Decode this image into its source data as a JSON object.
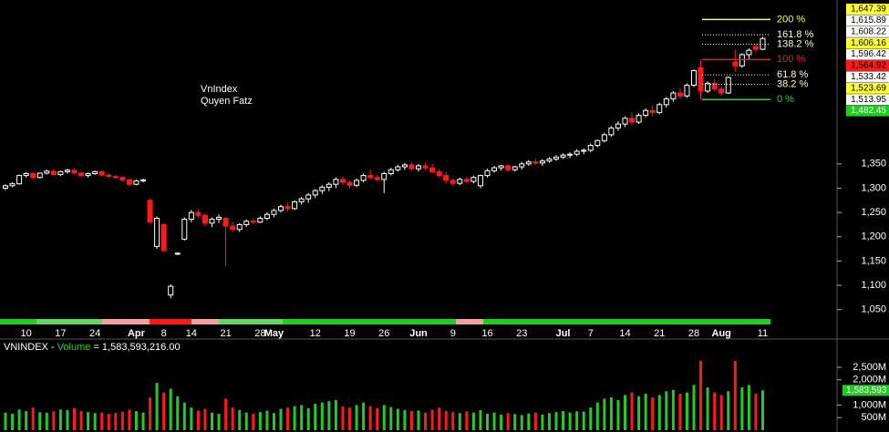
{
  "chart_data": [
    {
      "type": "candlestick",
      "annotations": [
        "VnIndex",
        "Quyen Fatz"
      ],
      "up_color": "#ffffff",
      "down_color": "#ff1a1a",
      "categories": [
        null,
        null,
        null,
        "10",
        null,
        null,
        null,
        null,
        "17",
        null,
        null,
        null,
        null,
        "24",
        null,
        null,
        null,
        null,
        null,
        "Apr",
        null,
        null,
        null,
        "8",
        null,
        null,
        null,
        "14",
        null,
        null,
        null,
        null,
        "21",
        null,
        null,
        null,
        null,
        "28",
        null,
        "May",
        null,
        null,
        null,
        null,
        null,
        "12",
        null,
        null,
        null,
        null,
        "19",
        null,
        null,
        null,
        null,
        "26",
        null,
        null,
        null,
        null,
        "Jun",
        null,
        null,
        null,
        null,
        "9",
        null,
        null,
        null,
        null,
        "16",
        null,
        null,
        null,
        null,
        "23",
        null,
        null,
        null,
        null,
        null,
        "Jul",
        null,
        null,
        null,
        "7",
        null,
        null,
        null,
        null,
        "14",
        null,
        null,
        null,
        null,
        "21",
        null,
        null,
        null,
        null,
        "28",
        null,
        null,
        null,
        "Aug",
        null,
        null,
        null,
        null,
        null,
        "11"
      ],
      "open": [
        1300,
        1305,
        1309,
        1326,
        1330,
        1322,
        1331,
        1335,
        1328,
        1334,
        1337,
        1331,
        1326,
        1330,
        1334,
        1327,
        1324,
        1322,
        1317,
        1308,
        1315,
        1275,
        1180,
        1225,
        1080,
        1165,
        1195,
        1236,
        1250,
        1244,
        1228,
        1236,
        1238,
        1222,
        1215,
        1225,
        1232,
        1230,
        1238,
        1246,
        1254,
        1262,
        1258,
        1272,
        1278,
        1286,
        1295,
        1302,
        1308,
        1318,
        1312,
        1306,
        1316,
        1326,
        1322,
        1318,
        1330,
        1338,
        1344,
        1348,
        1340,
        1346,
        1342,
        1334,
        1326,
        1316,
        1310,
        1318,
        1314,
        1305,
        1326,
        1336,
        1342,
        1346,
        1338,
        1344,
        1350,
        1354,
        1352,
        1356,
        1360,
        1364,
        1368,
        1370,
        1376,
        1378,
        1388,
        1398,
        1410,
        1424,
        1432,
        1444,
        1436,
        1450,
        1460,
        1456,
        1472,
        1484,
        1496,
        1490,
        1512,
        1548,
        1500,
        1516,
        1504,
        1496,
        1560,
        1552,
        1575,
        1592,
        1586
      ],
      "high": [
        1308,
        1312,
        1328,
        1333,
        1332,
        1332,
        1338,
        1340,
        1336,
        1340,
        1341,
        1334,
        1332,
        1336,
        1336,
        1331,
        1328,
        1325,
        1320,
        1318,
        1320,
        1278,
        1242,
        1228,
        1102,
        1168,
        1240,
        1255,
        1258,
        1248,
        1240,
        1246,
        1240,
        1232,
        1228,
        1236,
        1238,
        1242,
        1250,
        1258,
        1266,
        1270,
        1275,
        1282,
        1290,
        1298,
        1306,
        1312,
        1322,
        1324,
        1316,
        1320,
        1330,
        1338,
        1328,
        1334,
        1342,
        1348,
        1352,
        1354,
        1350,
        1352,
        1350,
        1340,
        1334,
        1320,
        1322,
        1324,
        1326,
        1328,
        1340,
        1346,
        1348,
        1350,
        1346,
        1354,
        1358,
        1360,
        1360,
        1364,
        1368,
        1372,
        1374,
        1380,
        1382,
        1392,
        1400,
        1414,
        1428,
        1438,
        1448,
        1456,
        1454,
        1464,
        1470,
        1476,
        1488,
        1500,
        1506,
        1516,
        1545,
        1564.92,
        1520,
        1525,
        1510,
        1530,
        1585,
        1578,
        1588,
        1598,
        1612
      ],
      "low": [
        1296,
        1302,
        1307,
        1322,
        1318,
        1320,
        1328,
        1326,
        1325,
        1330,
        1329,
        1324,
        1322,
        1327,
        1325,
        1322,
        1320,
        1313,
        1305,
        1306,
        1312,
        1228,
        1175,
        1168,
        1073,
        1162,
        1192,
        1230,
        1238,
        1222,
        1220,
        1228,
        1140,
        1210,
        1210,
        1220,
        1226,
        1228,
        1234,
        1240,
        1250,
        1252,
        1255,
        1266,
        1270,
        1280,
        1288,
        1294,
        1300,
        1306,
        1300,
        1302,
        1312,
        1318,
        1314,
        1290,
        1326,
        1334,
        1338,
        1336,
        1334,
        1338,
        1330,
        1322,
        1310,
        1304,
        1306,
        1310,
        1310,
        1300,
        1322,
        1332,
        1336,
        1334,
        1334,
        1338,
        1346,
        1348,
        1346,
        1352,
        1356,
        1360,
        1362,
        1366,
        1370,
        1374,
        1384,
        1394,
        1406,
        1418,
        1426,
        1430,
        1432,
        1446,
        1448,
        1452,
        1466,
        1478,
        1484,
        1486,
        1508,
        1482.45,
        1496,
        1500,
        1490,
        1494,
        1540,
        1548,
        1566,
        1580,
        1584
      ],
      "close": [
        1305,
        1309,
        1326,
        1330,
        1322,
        1331,
        1335,
        1328,
        1334,
        1337,
        1331,
        1326,
        1330,
        1334,
        1327,
        1324,
        1322,
        1317,
        1308,
        1315,
        1317,
        1230,
        1238,
        1172,
        1098,
        1166,
        1236,
        1250,
        1244,
        1228,
        1236,
        1240,
        1222,
        1215,
        1225,
        1232,
        1230,
        1238,
        1246,
        1254,
        1262,
        1258,
        1272,
        1278,
        1286,
        1295,
        1302,
        1308,
        1318,
        1312,
        1306,
        1316,
        1326,
        1322,
        1318,
        1330,
        1338,
        1344,
        1348,
        1340,
        1346,
        1342,
        1334,
        1326,
        1316,
        1310,
        1318,
        1314,
        1322,
        1326,
        1336,
        1342,
        1346,
        1338,
        1344,
        1350,
        1354,
        1352,
        1356,
        1360,
        1364,
        1368,
        1370,
        1376,
        1378,
        1388,
        1398,
        1410,
        1424,
        1432,
        1444,
        1436,
        1450,
        1460,
        1456,
        1472,
        1484,
        1496,
        1490,
        1512,
        1542,
        1500,
        1516,
        1504,
        1496,
        1528,
        1552,
        1575,
        1584,
        1586,
        1608.22
      ],
      "ylim": [
        1040,
        1680
      ],
      "yticks": [
        {
          "value": 1050,
          "label": "1,050"
        },
        {
          "value": 1100,
          "label": "1,100"
        },
        {
          "value": 1150,
          "label": "1,150"
        },
        {
          "value": 1200,
          "label": "1,200"
        },
        {
          "value": 1250,
          "label": "1,250"
        },
        {
          "value": 1300,
          "label": "1,300"
        },
        {
          "value": 1350,
          "label": "1,350"
        }
      ],
      "fibonacci": [
        {
          "label": "200 %",
          "value": 1647.39,
          "color": "#ffff33",
          "dotted": false
        },
        {
          "label": "161.8 %",
          "value": 1615.89,
          "color": "#ffffcc",
          "dotted": true
        },
        {
          "label": "138.2 %",
          "value": 1596.42,
          "color": "#ffffcc",
          "dotted": true
        },
        {
          "label": "100 %",
          "value": 1564.92,
          "color": "#ff1a1a",
          "dotted": false
        },
        {
          "label": "61.8 %",
          "value": 1533.42,
          "color": "#ffffcc",
          "dotted": true
        },
        {
          "label": "38.2 %",
          "value": 1513.95,
          "color": "#ffffcc",
          "dotted": true
        },
        {
          "label": "0 %",
          "value": 1482.45,
          "color": "#22dd22",
          "dotted": false
        }
      ],
      "price_labels": [
        {
          "label": "1,647.39",
          "bg": "#ffff33",
          "fg": "#000000"
        },
        {
          "label": "1,615.89",
          "bg": "#ffffff",
          "fg": "#000000"
        },
        {
          "label": "1,608.22",
          "bg": "#ffffff",
          "fg": "#000000"
        },
        {
          "label": "1,606.16",
          "bg": "#ffff33",
          "fg": "#000000"
        },
        {
          "label": "1,596.42",
          "bg": "#ffffff",
          "fg": "#000000"
        },
        {
          "label": "1,564.92",
          "bg": "#ff1a1a",
          "fg": "#000000"
        },
        {
          "label": "1,533.42",
          "bg": "#ffffff",
          "fg": "#000000"
        },
        {
          "label": "1,523.69",
          "bg": "#ffff33",
          "fg": "#000000"
        },
        {
          "label": "1,513.95",
          "bg": "#ffffff",
          "fg": "#000000"
        },
        {
          "label": "1,482.45",
          "bg": "#22cc22",
          "fg": "#ffffff"
        }
      ]
    },
    {
      "type": "bar",
      "symbol": "VNINDEX -",
      "indicator": "Volume",
      "value_text": "= 1,583,593,216.00",
      "up_color": "#22cc22",
      "down_color": "#ff1a1a",
      "values": [
        700,
        650,
        820,
        760,
        900,
        710,
        690,
        750,
        820,
        800,
        870,
        760,
        720,
        680,
        700,
        650,
        690,
        740,
        820,
        760,
        700,
        1300,
        1880,
        1500,
        1650,
        1350,
        1100,
        900,
        780,
        850,
        700,
        650,
        1250,
        900,
        800,
        700,
        650,
        720,
        780,
        680,
        850,
        900,
        950,
        1000,
        880,
        1050,
        1100,
        1150,
        1200,
        950,
        900,
        1000,
        1100,
        950,
        880,
        1000,
        920,
        850,
        800,
        760,
        780,
        700,
        820,
        900,
        760,
        720,
        680,
        750,
        700,
        800,
        650,
        700,
        620,
        680,
        640,
        600,
        660,
        700,
        620,
        680,
        720,
        760,
        700,
        750,
        740,
        900,
        1100,
        1250,
        1300,
        1200,
        1400,
        1500,
        1350,
        1450,
        1300,
        1400,
        1550,
        1600,
        1450,
        1500,
        1800,
        2750,
        1700,
        1500,
        1400,
        1550,
        2750,
        1700,
        1800,
        1450,
        1583.593216
      ],
      "value_labels": [
        null,
        null,
        null,
        null,
        null,
        null,
        null,
        null,
        null,
        null,
        null,
        null,
        null,
        null,
        null,
        null,
        null,
        null,
        null,
        null,
        null,
        null,
        null,
        null,
        null,
        null,
        null,
        null,
        null,
        null,
        null,
        null,
        null,
        null,
        null,
        null,
        null,
        null,
        null,
        null,
        null,
        null,
        null,
        null,
        null,
        null,
        null,
        null,
        null,
        null,
        null,
        null,
        null,
        null,
        null,
        null,
        null,
        null,
        null,
        null,
        null,
        null,
        null,
        null,
        null,
        null,
        null,
        null,
        null,
        null,
        null,
        null,
        null,
        null,
        null,
        null,
        null,
        null,
        null,
        null,
        null,
        null,
        null,
        null,
        null,
        null,
        null,
        null,
        null,
        null,
        null,
        null,
        null,
        null,
        null,
        null,
        null,
        null,
        null,
        null,
        null,
        null,
        null,
        null,
        null,
        null,
        null,
        null,
        null,
        null,
        "1,583,593"
      ],
      "ylim": [
        0,
        2900
      ],
      "yticks": [
        {
          "value": 500,
          "label": "500M"
        },
        {
          "value": 1000,
          "label": "1,000M"
        },
        {
          "value": 2000,
          "label": "2,000M"
        },
        {
          "value": 2500,
          "label": "2,500M"
        }
      ]
    }
  ]
}
